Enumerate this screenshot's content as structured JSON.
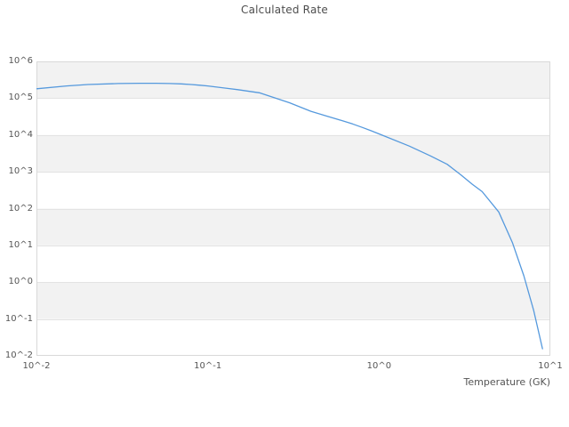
{
  "chart_data": {
    "type": "line",
    "title": "Calculated Rate",
    "xlabel": "Temperature (GK)",
    "ylabel": "",
    "x_scale": "log",
    "y_scale": "log",
    "xlim": [
      0.01,
      10
    ],
    "ylim": [
      0.01,
      1000000
    ],
    "x_ticks": [
      "10^-2",
      "10^-1",
      "10^0",
      "10^1"
    ],
    "y_ticks": [
      "10^6",
      "10^5",
      "10^4",
      "10^3",
      "10^2",
      "10^1",
      "10^0",
      "10^-1",
      "10^-2"
    ],
    "grid": "horizontal-bands",
    "legend": "none",
    "colors": {
      "line": "#5599dd",
      "band": "#f2f2f2",
      "grid": "#e3e3e3",
      "border": "#d9d9d9",
      "text": "#555555"
    },
    "series": [
      {
        "name": "calculated-rate",
        "x": [
          0.01,
          0.015,
          0.02,
          0.03,
          0.04,
          0.05,
          0.06,
          0.07,
          0.08,
          0.09,
          0.1,
          0.15,
          0.2,
          0.3,
          0.4,
          0.5,
          0.6,
          0.7,
          0.8,
          0.9,
          1.0,
          1.5,
          2.0,
          2.5,
          3.0,
          3.5,
          4.0,
          5.0,
          6.0,
          7.0,
          8.0,
          9.0
        ],
        "y": [
          180000.0,
          215000.0,
          235000.0,
          250000.0,
          255000.0,
          255000.0,
          250000.0,
          245000.0,
          235000.0,
          225000.0,
          215000.0,
          170000.0,
          140000.0,
          75000.0,
          44000.0,
          32000.0,
          25000.0,
          20000.0,
          16000.0,
          13000.0,
          10700.0,
          5000.0,
          2700.0,
          1600.0,
          830.0,
          460.0,
          290.0,
          81.0,
          12.0,
          1.5,
          0.17,
          0.0155
        ]
      }
    ]
  }
}
